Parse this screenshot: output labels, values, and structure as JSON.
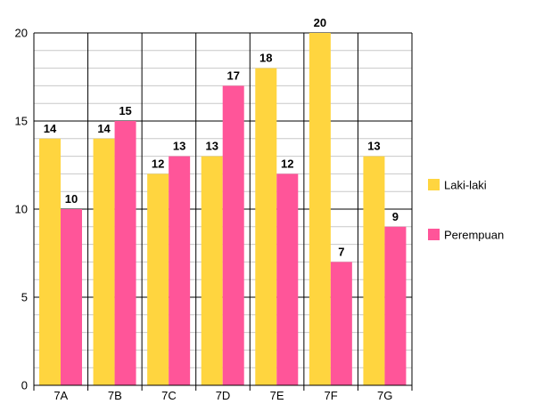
{
  "chart_data": {
    "type": "bar",
    "categories": [
      "7A",
      "7B",
      "7C",
      "7D",
      "7E",
      "7F",
      "7G"
    ],
    "series": [
      {
        "name": "Laki-laki",
        "values": [
          14,
          14,
          12,
          13,
          18,
          20,
          13
        ],
        "color": "#FFD53F"
      },
      {
        "name": "Perempuan",
        "values": [
          10,
          15,
          13,
          17,
          12,
          7,
          9
        ],
        "color": "#FF5599"
      }
    ],
    "ylim": [
      0,
      20
    ],
    "yticks": [
      0,
      5,
      10,
      15,
      20
    ],
    "minor_grid_step": 1,
    "grid": true,
    "legend_position": "right",
    "title": "",
    "xlabel": "",
    "ylabel": ""
  }
}
